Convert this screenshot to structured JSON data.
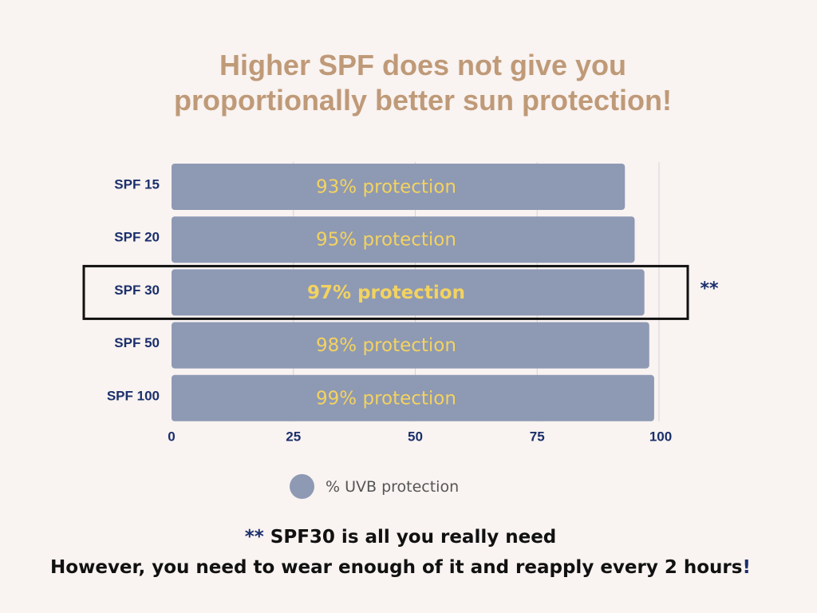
{
  "title_line1": "Higher SPF does not give you",
  "title_line2": "proportionally better sun protection!",
  "colors": {
    "background": "#f9f3f1",
    "title": "#bf9a78",
    "bar": "#8e99b4",
    "bar_label": "#f3d35f",
    "axis_label": "#1b2f6b",
    "highlight_box": "#111111"
  },
  "chart_data": {
    "type": "bar",
    "orientation": "horizontal",
    "categories": [
      "SPF 15",
      "SPF 20",
      "SPF 30",
      "SPF 50",
      "SPF 100"
    ],
    "values": [
      93,
      95,
      97,
      98,
      99
    ],
    "data_labels": [
      "93% protection",
      "95% protection",
      "97% protection",
      "98% protection",
      "99% protection"
    ],
    "highlighted_index": 2,
    "highlight_annotation": "**",
    "xlim": [
      0,
      100
    ],
    "x_ticks": [
      0,
      25,
      50,
      75,
      100
    ],
    "grid": true,
    "legend": {
      "position": "bottom",
      "entries": [
        "% UVB protection"
      ]
    }
  },
  "footnote": {
    "line1_star": "**",
    "line1_text": " SPF30 is all you really need",
    "line2_text": "However, you need to wear enough of it and reapply every 2 hours",
    "line2_end": "!"
  }
}
